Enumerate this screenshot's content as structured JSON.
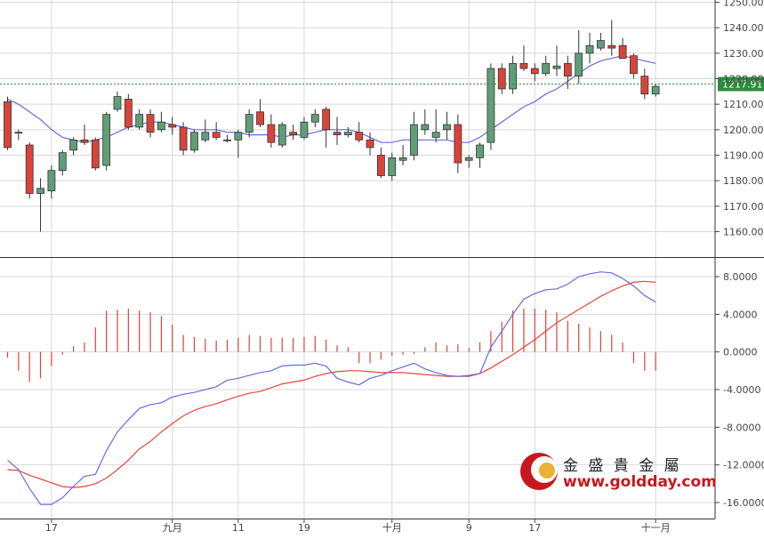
{
  "colors": {
    "up": "#5f9e78",
    "down": "#d9443a",
    "ma_line": "#6a6ae0",
    "dif_line": "#6a6ae0",
    "dea_line": "#e8453c",
    "hist": "#d9443a",
    "grid": "#d8d8d8",
    "price_line": "#2e8b3e",
    "brand_red": "#c8171e"
  },
  "logo": {
    "name": "金 盛 貴 金 屬",
    "url": "www.goldday.com"
  },
  "chart_data": [
    {
      "type": "candlestick",
      "title": "",
      "xlabel": "",
      "ylabel": "",
      "ylim": [
        1150,
        1250
      ],
      "y_ticks": [
        "1160.00",
        "1170.00",
        "1180.00",
        "1190.00",
        "1200.00",
        "1210.00",
        "1220.00",
        "1230.00",
        "1240.00",
        "1250.00"
      ],
      "current_price": 1217.91,
      "current_price_label": "1217.91",
      "x_ticks": [
        {
          "index": 4,
          "label": "17"
        },
        {
          "index": 15,
          "label": "九月"
        },
        {
          "index": 21,
          "label": "11"
        },
        {
          "index": 27,
          "label": "19"
        },
        {
          "index": 35,
          "label": "十月"
        },
        {
          "index": 42,
          "label": "9"
        },
        {
          "index": 48,
          "label": "17"
        },
        {
          "index": 59,
          "label": "十一月"
        }
      ],
      "candles": [
        [
          1211,
          1213,
          1192,
          1193
        ],
        [
          1199,
          1200,
          1196,
          1199
        ],
        [
          1194,
          1195,
          1173,
          1175
        ],
        [
          1175,
          1181,
          1160,
          1177
        ],
        [
          1176,
          1186,
          1173,
          1184
        ],
        [
          1184,
          1192,
          1182,
          1191
        ],
        [
          1192,
          1197,
          1190,
          1196
        ],
        [
          1196,
          1202,
          1194,
          1195
        ],
        [
          1196,
          1197,
          1184,
          1185
        ],
        [
          1186,
          1207,
          1184,
          1206
        ],
        [
          1208,
          1215,
          1207,
          1213
        ],
        [
          1212,
          1214,
          1200,
          1201
        ],
        [
          1201,
          1208,
          1200,
          1206
        ],
        [
          1206,
          1208,
          1197,
          1199
        ],
        [
          1200,
          1207,
          1199,
          1203
        ],
        [
          1202,
          1205,
          1198,
          1201
        ],
        [
          1201,
          1203,
          1190,
          1192
        ],
        [
          1192,
          1200,
          1191,
          1199
        ],
        [
          1196,
          1204,
          1195,
          1199
        ],
        [
          1199,
          1203,
          1196,
          1197
        ],
        [
          1196,
          1198,
          1195,
          1196
        ],
        [
          1196,
          1200,
          1189,
          1199
        ],
        [
          1199,
          1208,
          1197,
          1206
        ],
        [
          1207,
          1212,
          1201,
          1202
        ],
        [
          1202,
          1206,
          1193,
          1195
        ],
        [
          1194,
          1203,
          1193,
          1202
        ],
        [
          1199,
          1202,
          1196,
          1198
        ],
        [
          1197,
          1205,
          1196,
          1203
        ],
        [
          1203,
          1208,
          1201,
          1206
        ],
        [
          1208,
          1209,
          1193,
          1200
        ],
        [
          1199,
          1205,
          1194,
          1198
        ],
        [
          1198,
          1201,
          1197,
          1199
        ],
        [
          1199,
          1203,
          1195,
          1196
        ],
        [
          1196,
          1199,
          1190,
          1193
        ],
        [
          1190,
          1193,
          1181,
          1182
        ],
        [
          1182,
          1191,
          1180,
          1189
        ],
        [
          1188,
          1194,
          1186,
          1189
        ],
        [
          1190,
          1207,
          1188,
          1202
        ],
        [
          1200,
          1208,
          1198,
          1202
        ],
        [
          1197,
          1208,
          1195,
          1199
        ],
        [
          1200,
          1207,
          1196,
          1202
        ],
        [
          1202,
          1206,
          1183,
          1187
        ],
        [
          1188,
          1190,
          1185,
          1189
        ],
        [
          1189,
          1195,
          1185,
          1194
        ],
        [
          1195,
          1226,
          1192,
          1224
        ],
        [
          1224,
          1226,
          1214,
          1216
        ],
        [
          1216,
          1229,
          1214,
          1226
        ],
        [
          1226,
          1233,
          1223,
          1224
        ],
        [
          1224,
          1226,
          1219,
          1222
        ],
        [
          1222,
          1229,
          1221,
          1226
        ],
        [
          1224,
          1233,
          1221,
          1225
        ],
        [
          1226,
          1229,
          1216,
          1221
        ],
        [
          1221,
          1239,
          1218,
          1230
        ],
        [
          1230,
          1238,
          1226,
          1233
        ],
        [
          1232,
          1238,
          1231,
          1235
        ],
        [
          1233,
          1243,
          1229,
          1232
        ],
        [
          1233,
          1236,
          1228,
          1228
        ],
        [
          1229,
          1230,
          1220,
          1222
        ],
        [
          1221,
          1224,
          1212,
          1214
        ],
        [
          1214,
          1218,
          1213,
          1217
        ]
      ],
      "ma": [
        1212,
        1210,
        1207,
        1204,
        1200,
        1197,
        1196,
        1195,
        1196,
        1197,
        1199,
        1201,
        1202,
        1203,
        1203,
        1202,
        1201,
        1200,
        1200,
        1200,
        1199,
        1199,
        1198,
        1198,
        1198,
        1197,
        1198,
        1198,
        1199,
        1200,
        1200,
        1200,
        1199,
        1197,
        1195,
        1195,
        1196,
        1196,
        1196,
        1196,
        1196,
        1195,
        1195,
        1197,
        1200,
        1203,
        1206,
        1209,
        1211,
        1214,
        1216,
        1219,
        1222,
        1225,
        1227,
        1228,
        1229,
        1228,
        1227,
        1226
      ]
    },
    {
      "type": "macd",
      "title": "",
      "ylim": [
        -17,
        11
      ],
      "y_ticks": [
        "8.0000",
        "4.0000",
        "0.0000",
        "-4.0000",
        "-8.0000",
        "-12.0000",
        "-16.0000"
      ],
      "dif": [
        -11.5,
        -12.5,
        -14.5,
        -16.2,
        -16.2,
        -15.5,
        -14.3,
        -13.2,
        -13.0,
        -10.5,
        -8.5,
        -7.2,
        -6.0,
        -5.6,
        -5.4,
        -4.8,
        -4.5,
        -4.3,
        -4.0,
        -3.7,
        -3.0,
        -2.8,
        -2.5,
        -2.2,
        -2.0,
        -1.5,
        -1.4,
        -1.4,
        -1.2,
        -1.5,
        -2.8,
        -3.2,
        -3.5,
        -2.8,
        -2.5,
        -2.0,
        -1.6,
        -1.2,
        -1.8,
        -2.2,
        -2.5,
        -2.6,
        -2.6,
        -2.3,
        0.5,
        2.2,
        4.0,
        5.6,
        6.2,
        6.6,
        6.7,
        7.2,
        8.0,
        8.3,
        8.5,
        8.4,
        7.8,
        7.0,
        6.0,
        5.3
      ],
      "dea": [
        -12.5,
        -12.6,
        -13.1,
        -13.5,
        -13.9,
        -14.3,
        -14.4,
        -14.3,
        -14.0,
        -13.4,
        -12.5,
        -11.5,
        -10.3,
        -9.5,
        -8.5,
        -7.6,
        -6.8,
        -6.2,
        -5.8,
        -5.5,
        -5.1,
        -4.7,
        -4.4,
        -4.2,
        -3.8,
        -3.4,
        -3.2,
        -3.0,
        -2.6,
        -2.3,
        -2.1,
        -2.0,
        -2.0,
        -2.1,
        -2.2,
        -2.2,
        -2.2,
        -2.3,
        -2.4,
        -2.5,
        -2.6,
        -2.6,
        -2.5,
        -2.3,
        -1.7,
        -1.0,
        -0.3,
        0.5,
        1.3,
        2.2,
        3.1,
        3.8,
        4.5,
        5.2,
        5.9,
        6.5,
        7.0,
        7.4,
        7.5,
        7.4
      ],
      "hist": [
        -0.6,
        -2.0,
        -3.2,
        -2.8,
        -1.5,
        -0.3,
        0.6,
        1.0,
        2.6,
        4.4,
        4.5,
        4.6,
        4.4,
        4.2,
        3.8,
        2.9,
        1.8,
        1.6,
        1.4,
        1.2,
        1.3,
        1.5,
        1.8,
        1.7,
        1.5,
        1.5,
        1.5,
        1.6,
        1.7,
        1.3,
        0.7,
        0.5,
        -1.2,
        -1.2,
        -0.8,
        -0.4,
        -0.3,
        -0.2,
        0.5,
        1.0,
        0.7,
        0.8,
        0.4,
        1.0,
        2.2,
        3.2,
        4.4,
        4.6,
        4.6,
        4.5,
        4.2,
        3.3,
        3.0,
        2.6,
        2.2,
        1.8,
        1.0,
        -1.2,
        -2.0,
        -2.0
      ]
    }
  ]
}
